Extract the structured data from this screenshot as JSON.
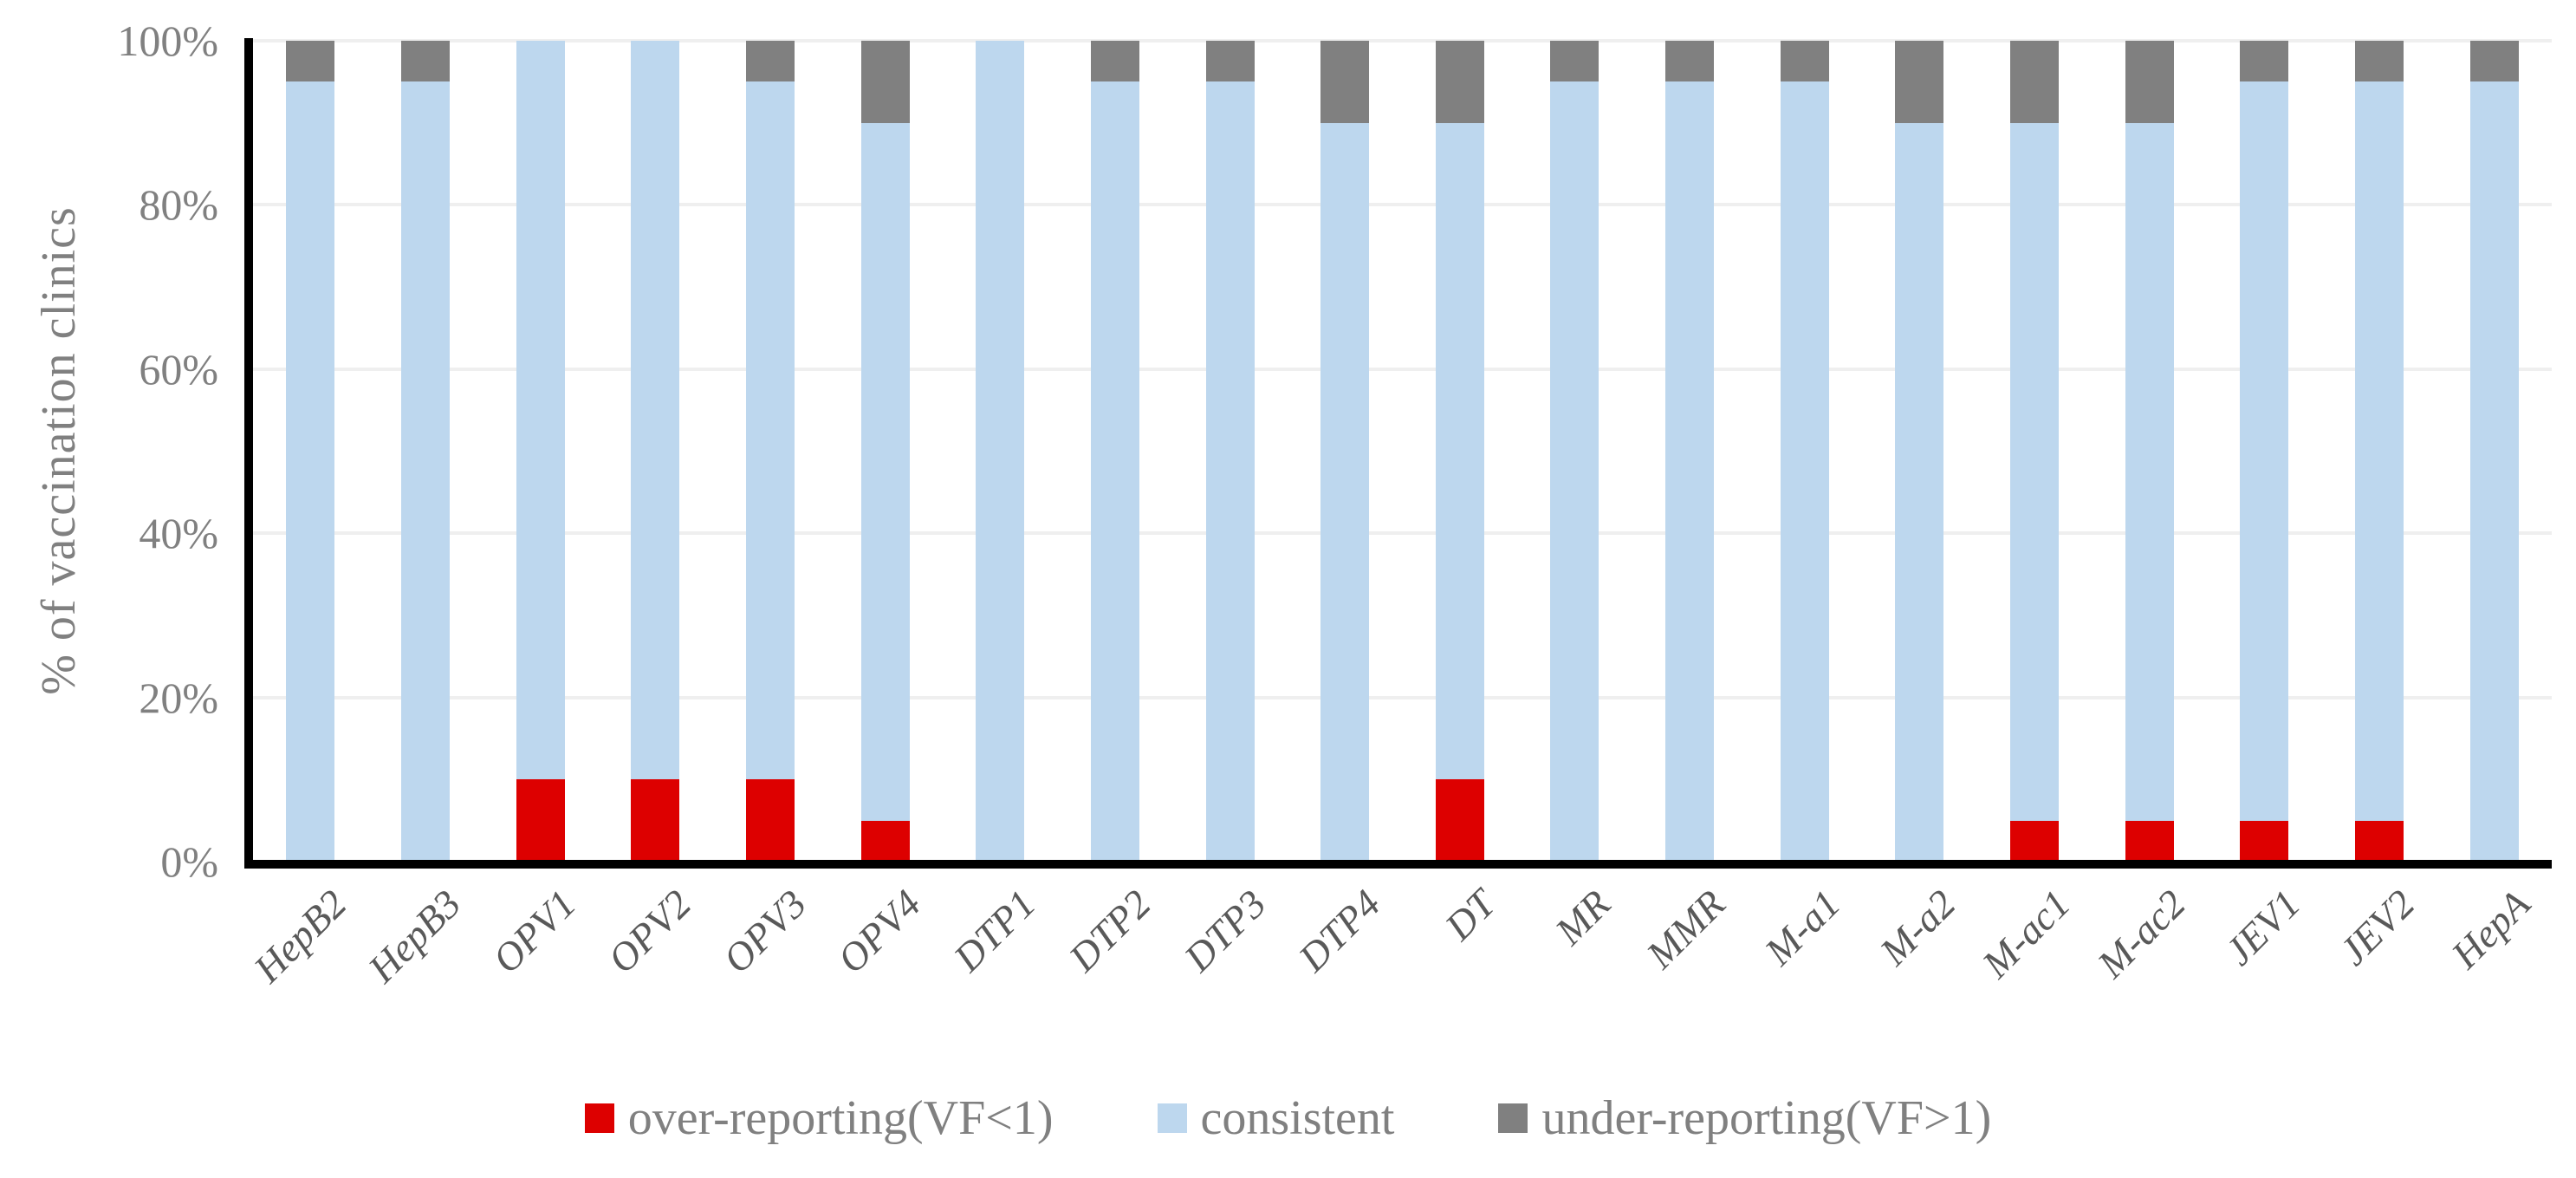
{
  "chart_data": {
    "type": "bar",
    "stacked": true,
    "orientation": "vertical",
    "title": "",
    "xlabel": "",
    "ylabel": "% of vaccination clinics",
    "ylim": [
      0,
      100
    ],
    "grid": "horizontal",
    "legend_position": "bottom",
    "yticks": [
      {
        "value": 0,
        "label": "0%"
      },
      {
        "value": 20,
        "label": "20%"
      },
      {
        "value": 40,
        "label": "40%"
      },
      {
        "value": 60,
        "label": "60%"
      },
      {
        "value": 80,
        "label": "80%"
      },
      {
        "value": 100,
        "label": "100%"
      }
    ],
    "categories": [
      "HepB2",
      "HepB3",
      "OPV1",
      "OPV2",
      "OPV3",
      "OPV4",
      "DTP1",
      "DTP2",
      "DTP3",
      "DTP4",
      "DT",
      "MR",
      "MMR",
      "M-a1",
      "M-a2",
      "M-ac1",
      "M-ac2",
      "JEV1",
      "JEV2",
      "HepA"
    ],
    "series": [
      {
        "name": "over-reporting(VF<1)",
        "color": "#dd0000",
        "values": [
          0,
          0,
          10,
          10,
          10,
          5,
          0,
          0,
          0,
          0,
          10,
          0,
          0,
          0,
          0,
          5,
          5,
          5,
          5,
          0
        ]
      },
      {
        "name": "consistent",
        "color": "#bdd7ee",
        "values": [
          95,
          95,
          90,
          90,
          85,
          85,
          100,
          95,
          95,
          90,
          80,
          95,
          95,
          95,
          90,
          85,
          85,
          90,
          90,
          95
        ]
      },
      {
        "name": "under-reporting(VF>1)",
        "color": "#808080",
        "values": [
          5,
          5,
          0,
          0,
          5,
          10,
          0,
          5,
          5,
          10,
          10,
          5,
          5,
          5,
          10,
          10,
          10,
          5,
          5,
          5
        ]
      }
    ]
  },
  "colors": {
    "axis_line": "#000000",
    "gridline": "#efefef",
    "tick_text": "#808080",
    "category_text": "#595959",
    "legend_text": "#808080",
    "background": "#ffffff"
  }
}
